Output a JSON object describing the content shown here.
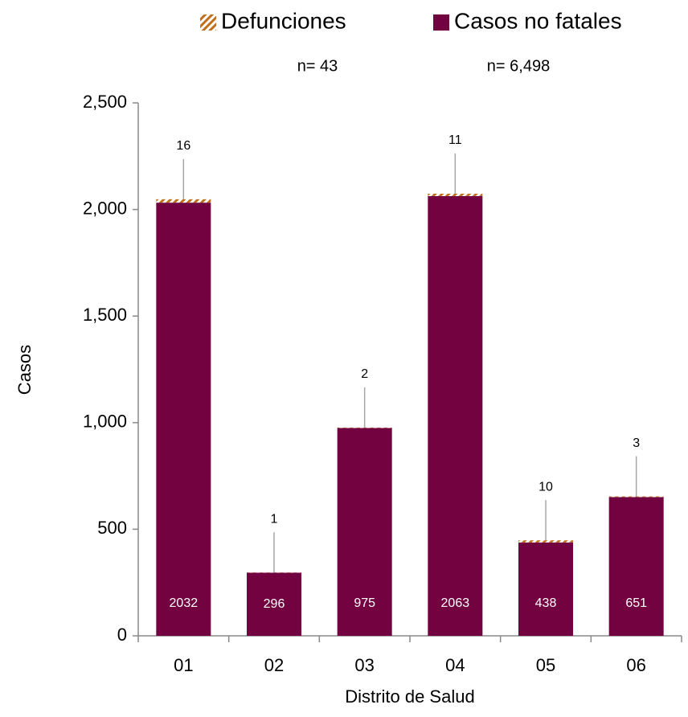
{
  "chart_data": {
    "type": "stacked_bar",
    "categories": [
      "01",
      "02",
      "03",
      "04",
      "05",
      "06"
    ],
    "series": [
      {
        "name": "Casos no fatales",
        "color": "#720340",
        "values": [
          2032,
          296,
          975,
          2063,
          438,
          651
        ]
      },
      {
        "name": "Defunciones",
        "color": "#c0701a",
        "pattern": "hatch",
        "values": [
          16,
          1,
          2,
          11,
          10,
          3
        ]
      }
    ],
    "legend_order": [
      1,
      0
    ],
    "legend": "top",
    "annotations": [
      "n= 43",
      "n= 6,498"
    ],
    "ylim": [
      0,
      2500
    ],
    "yticks": [
      0,
      500,
      {
        "value": 1000,
        "label": "1,000"
      },
      {
        "value": 1500,
        "label": "1,500"
      },
      {
        "value": 2000,
        "label": "2,000"
      },
      {
        "value": 2500,
        "label": "2,500"
      }
    ],
    "ylabel": "Casos",
    "xlabel": "Distrito de Salud",
    "grid": false
  }
}
